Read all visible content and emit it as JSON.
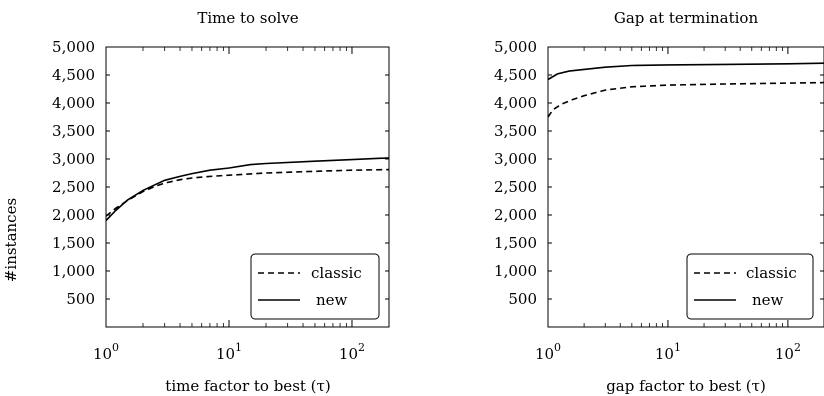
{
  "chart_data": [
    {
      "type": "line",
      "title": "Time to solve",
      "xlabel": "time factor to best (τ)",
      "ylabel": "#instances",
      "x_scale": "log",
      "xlim": [
        1,
        200
      ],
      "ylim": [
        0,
        5000
      ],
      "x_ticks": [
        {
          "base": "10",
          "exp": "0",
          "value": 1
        },
        {
          "base": "10",
          "exp": "1",
          "value": 10
        },
        {
          "base": "10",
          "exp": "2",
          "value": 100
        }
      ],
      "y_ticks": [
        {
          "label": "500",
          "value": 500
        },
        {
          "label": "1,000",
          "value": 1000
        },
        {
          "label": "1,500",
          "value": 1500
        },
        {
          "label": "2,000",
          "value": 2000
        },
        {
          "label": "2,500",
          "value": 2500
        },
        {
          "label": "3,000",
          "value": 3000
        },
        {
          "label": "3,500",
          "value": 3500
        },
        {
          "label": "4,000",
          "value": 4000
        },
        {
          "label": "4,500",
          "value": 4500
        },
        {
          "label": "5,000",
          "value": 5000
        }
      ],
      "grid": false,
      "legend_position": "bottom-right",
      "series": [
        {
          "name": "classic",
          "style": "dashed",
          "x": [
            1,
            1.2,
            1.5,
            2,
            2.5,
            3,
            4,
            5,
            7,
            10,
            20,
            50,
            100,
            200
          ],
          "y": [
            1980,
            2120,
            2260,
            2420,
            2510,
            2570,
            2630,
            2660,
            2690,
            2710,
            2750,
            2780,
            2800,
            2810
          ]
        },
        {
          "name": "new",
          "style": "solid",
          "x": [
            1,
            1.2,
            1.5,
            2,
            2.5,
            3,
            4,
            5,
            7,
            10,
            15,
            20,
            50,
            100,
            200
          ],
          "y": [
            1900,
            2080,
            2270,
            2440,
            2540,
            2620,
            2690,
            2740,
            2800,
            2840,
            2900,
            2920,
            2960,
            2990,
            3020
          ]
        }
      ]
    },
    {
      "type": "line",
      "title": "Gap at termination",
      "xlabel": "gap factor to best (τ)",
      "ylabel": "",
      "x_scale": "log",
      "xlim": [
        1,
        200
      ],
      "ylim": [
        0,
        5000
      ],
      "x_ticks": [
        {
          "base": "10",
          "exp": "0",
          "value": 1
        },
        {
          "base": "10",
          "exp": "1",
          "value": 10
        },
        {
          "base": "10",
          "exp": "2",
          "value": 100
        }
      ],
      "y_ticks": [
        {
          "label": "500",
          "value": 500
        },
        {
          "label": "1,000",
          "value": 1000
        },
        {
          "label": "1,500",
          "value": 1500
        },
        {
          "label": "2,000",
          "value": 2000
        },
        {
          "label": "2,500",
          "value": 2500
        },
        {
          "label": "3,000",
          "value": 3000
        },
        {
          "label": "3,500",
          "value": 3500
        },
        {
          "label": "4,000",
          "value": 4000
        },
        {
          "label": "4,500",
          "value": 4500
        },
        {
          "label": "5,000",
          "value": 5000
        }
      ],
      "grid": false,
      "legend_position": "bottom-right",
      "series": [
        {
          "name": "classic",
          "style": "dashed",
          "x": [
            1,
            1.1,
            1.3,
            1.6,
            2,
            3,
            5,
            10,
            30,
            100,
            200
          ],
          "y": [
            3750,
            3880,
            3980,
            4060,
            4130,
            4230,
            4290,
            4320,
            4340,
            4355,
            4365
          ]
        },
        {
          "name": "new",
          "style": "solid",
          "x": [
            1,
            1.2,
            1.5,
            2,
            3,
            5,
            10,
            30,
            100,
            200
          ],
          "y": [
            4420,
            4520,
            4570,
            4600,
            4640,
            4670,
            4680,
            4690,
            4700,
            4710
          ]
        }
      ]
    }
  ]
}
